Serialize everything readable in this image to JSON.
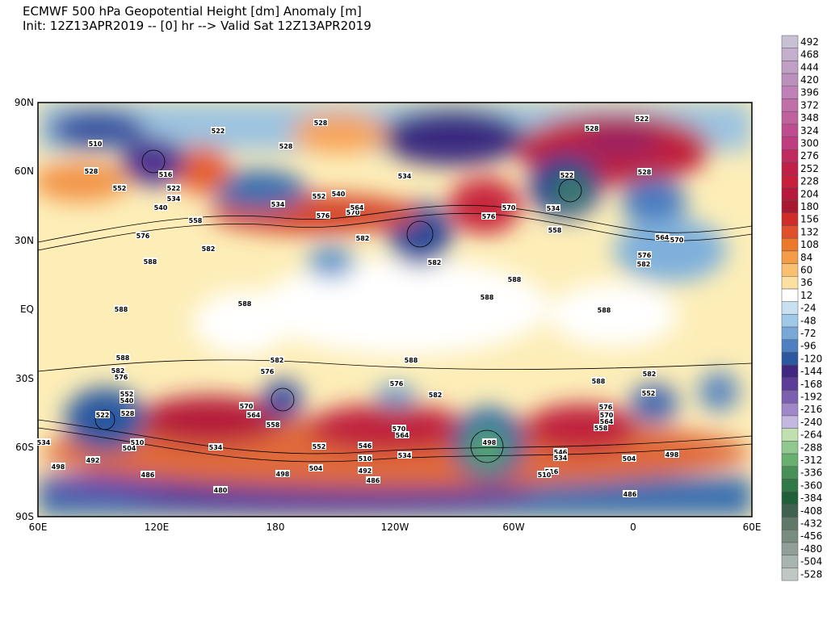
{
  "header": {
    "title": "ECMWF 500 hPa Geopotential Height [dm] Anomaly [m]",
    "subtitle": "Init: 12Z13APR2019 -- [0] hr --> Valid Sat 12Z13APR2019"
  },
  "map": {
    "lat_labels": [
      "90N",
      "60N",
      "30N",
      "EQ",
      "30S",
      "60S",
      "90S"
    ],
    "lon_labels": [
      "60E",
      "120E",
      "180",
      "120W",
      "60W",
      "0",
      "60E"
    ],
    "contour_labels": [
      "522",
      "510",
      "528",
      "528",
      "528",
      "516",
      "552",
      "522",
      "534",
      "540",
      "558",
      "576",
      "582",
      "582",
      "576",
      "570",
      "564",
      "534",
      "552",
      "540",
      "534",
      "582",
      "528",
      "522",
      "522",
      "534",
      "558",
      "570",
      "576",
      "528",
      "564",
      "570",
      "576",
      "582",
      "588",
      "588",
      "588",
      "588",
      "588",
      "588",
      "588",
      "582",
      "576",
      "582",
      "576",
      "570",
      "564",
      "558",
      "588",
      "576",
      "582",
      "588",
      "582",
      "552",
      "576",
      "570",
      "564",
      "558",
      "552",
      "540",
      "528",
      "522",
      "504",
      "510",
      "534",
      "552",
      "570",
      "564",
      "534",
      "546",
      "510",
      "492",
      "498",
      "486",
      "498",
      "504",
      "492",
      "486",
      "480",
      "498",
      "546",
      "534",
      "516",
      "510",
      "504",
      "498",
      "486",
      "534"
    ]
  },
  "colorbar": {
    "labels": [
      492,
      468,
      444,
      420,
      396,
      372,
      348,
      324,
      300,
      276,
      252,
      228,
      204,
      180,
      156,
      132,
      108,
      84,
      60,
      36,
      12,
      -24,
      -48,
      -72,
      -96,
      -120,
      -144,
      -168,
      -192,
      -216,
      -240,
      -264,
      -288,
      -312,
      -336,
      -360,
      -384,
      -408,
      -432,
      -456,
      -480,
      -504,
      -528
    ]
  }
}
